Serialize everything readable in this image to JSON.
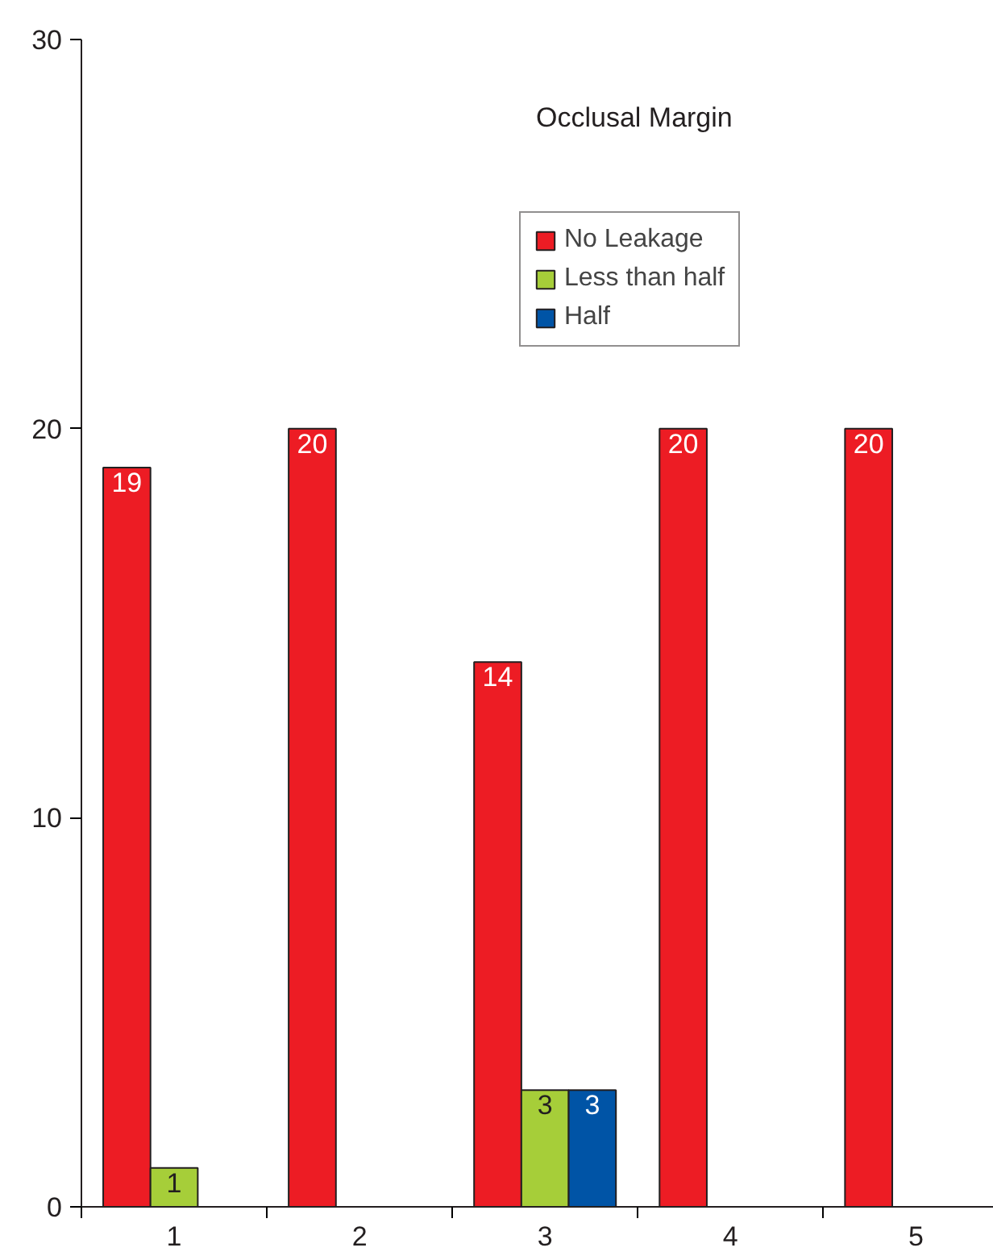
{
  "chart_data": {
    "type": "bar",
    "title": "Occlusal Margin",
    "categories": [
      "1",
      "2",
      "3",
      "4",
      "5"
    ],
    "series": [
      {
        "name": "No Leakage",
        "color": "#ed1c24",
        "values": [
          19,
          20,
          14,
          20,
          20
        ]
      },
      {
        "name": "Less than half",
        "color": "#a6ce39",
        "values": [
          1,
          null,
          3,
          null,
          null
        ]
      },
      {
        "name": "Half",
        "color": "#0054a6",
        "values": [
          null,
          null,
          3,
          null,
          null
        ]
      }
    ],
    "ylim": [
      0,
      30
    ],
    "yticks": [
      0,
      10,
      20,
      30
    ],
    "grid": false,
    "legend": "top right",
    "data_labels": true
  }
}
